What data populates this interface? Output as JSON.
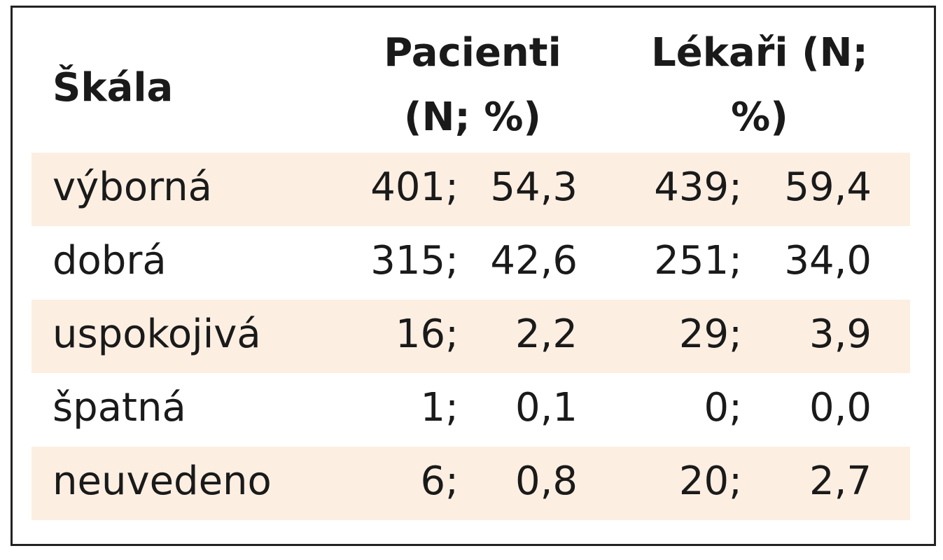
{
  "table": {
    "header": [
      "Škála",
      "Pacienti (N; %)",
      "Lékaři (N; %)"
    ],
    "rows": [
      [
        "výborná",
        "401;",
        "54,3",
        "439;",
        "59,4"
      ],
      [
        "dobrá",
        "315;",
        "42,6",
        "251;",
        "34,0"
      ],
      [
        "uspokojivá",
        "16;",
        "2,2",
        "29;",
        "3,9"
      ],
      [
        "špatná",
        "1;",
        "0,1",
        "0;",
        "0,0"
      ],
      [
        "neuvedeno",
        "6;",
        "0,8",
        "20;",
        "2,7"
      ]
    ]
  }
}
